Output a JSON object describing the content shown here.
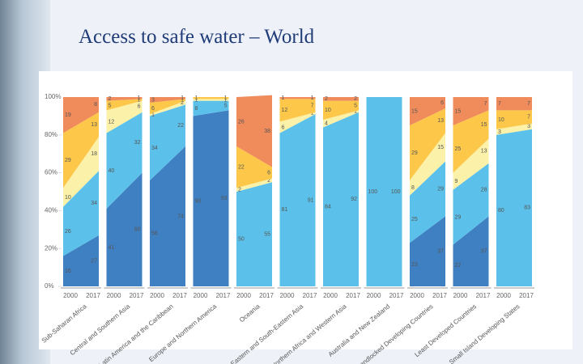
{
  "title": "Access to safe water – World",
  "chart_data": {
    "type": "stacked-area-panels",
    "categories": [
      "Sub-Saharan Africa",
      "Central and Southern Asia",
      "Latin America and the Caribbean",
      "Europe and Northern America",
      "Oceania",
      "Eastern and South-Eastern Asia",
      "Northern Africa and Western Asia",
      "Australia and New Zealand",
      "Landlocked Developing Countries",
      "Least Developed Countries",
      "Small Island Developing States"
    ],
    "x": [
      "2000",
      "2017"
    ],
    "ylim": [
      0,
      100
    ],
    "yticks": [
      {
        "value": 0,
        "label": "0%"
      },
      {
        "value": 20,
        "label": "20%"
      },
      {
        "value": 40,
        "label": "40%"
      },
      {
        "value": 60,
        "label": "60%"
      },
      {
        "value": 80,
        "label": "80%"
      },
      {
        "value": 100,
        "label": "100%"
      }
    ],
    "series": [
      {
        "color": "#3f80c2",
        "values": [
          [
            16,
            27
          ],
          [
            41,
            60
          ],
          [
            56,
            74
          ],
          [
            90,
            93
          ],
          [
            0,
            0
          ],
          [
            0,
            0
          ],
          [
            0,
            0
          ],
          [
            0,
            0
          ],
          [
            23,
            37
          ],
          [
            22,
            37
          ],
          [
            0,
            0
          ]
        ]
      },
      {
        "color": "#5cc1ea",
        "values": [
          [
            26,
            34
          ],
          [
            40,
            32
          ],
          [
            34,
            22
          ],
          [
            8,
            5
          ],
          [
            50,
            55
          ],
          [
            81,
            91
          ],
          [
            84,
            92
          ],
          [
            100,
            100
          ],
          [
            25,
            29
          ],
          [
            29,
            28
          ],
          [
            80,
            83
          ]
        ]
      },
      {
        "color": "#fbf1a9",
        "values": [
          [
            10,
            18
          ],
          [
            12,
            6
          ],
          [
            1,
            2
          ],
          [
            1,
            1
          ],
          [
            2,
            2
          ],
          [
            6,
            1
          ],
          [
            4,
            1
          ],
          [
            0,
            0
          ],
          [
            8,
            15
          ],
          [
            9,
            13
          ],
          [
            3,
            3
          ]
        ]
      },
      {
        "color": "#fdc84a",
        "values": [
          [
            29,
            13
          ],
          [
            5,
            1
          ],
          [
            6,
            1
          ],
          [
            1,
            1
          ],
          [
            22,
            6
          ],
          [
            12,
            7
          ],
          [
            10,
            5
          ],
          [
            0,
            0
          ],
          [
            29,
            13
          ],
          [
            25,
            15
          ],
          [
            10,
            7
          ]
        ]
      },
      {
        "color": "#f08c5c",
        "values": [
          [
            19,
            8
          ],
          [
            2,
            1
          ],
          [
            3,
            1
          ],
          [
            0,
            0
          ],
          [
            26,
            38
          ],
          [
            1,
            1
          ],
          [
            2,
            2
          ],
          [
            0,
            0
          ],
          [
            15,
            6
          ],
          [
            15,
            7
          ],
          [
            7,
            7
          ]
        ]
      }
    ]
  }
}
